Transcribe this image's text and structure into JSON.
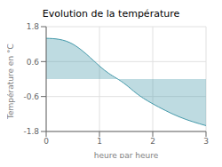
{
  "chart_data": {
    "type": "area",
    "title": "Evolution de la température",
    "xlabel": "heure par heure",
    "ylabel": "Température en °C",
    "x": [
      0,
      0.5,
      1.0,
      1.3,
      1.5,
      1.7,
      2.0,
      2.5,
      3.0
    ],
    "values": [
      1.4,
      1.2,
      0.45,
      0.05,
      -0.2,
      -0.5,
      -0.85,
      -1.3,
      -1.6
    ],
    "color": "#4499aa",
    "xlim": [
      0,
      3
    ],
    "ylim": [
      -1.8,
      1.8
    ],
    "xticks": [
      0,
      1,
      2,
      3
    ],
    "yticks": [
      -1.8,
      -0.6,
      0.6,
      1.8
    ],
    "grid": true
  }
}
